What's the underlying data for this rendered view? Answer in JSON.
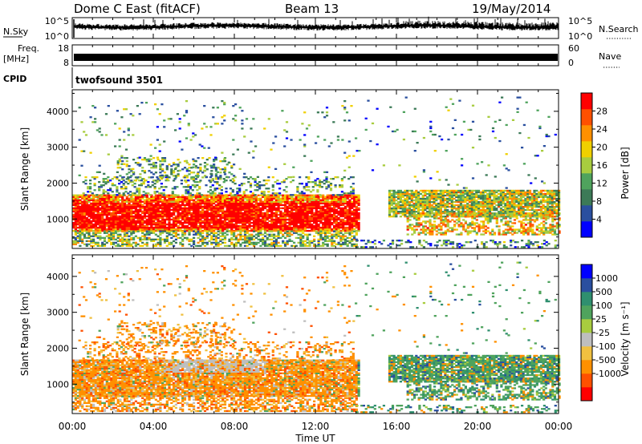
{
  "header": {
    "station": "Dome C East (fitACF)",
    "beam": "Beam 13",
    "date": "19/May/2014"
  },
  "nsky": {
    "label": "N.Sky",
    "ytick_top": "10^5",
    "ytick_bottom": "10^0",
    "right_label": "N.Search",
    "right_tick_top": "10^5",
    "right_tick_bottom": "10^0"
  },
  "freq": {
    "label_line1": "Freq.",
    "label_line2": "[MHz]",
    "ytick_top": "18",
    "ytick_bottom": "8",
    "right_label": "Nave",
    "right_tick_top": "60",
    "right_tick_bottom": "0"
  },
  "cpid": {
    "label": "CPID",
    "program": "twofsound 3501"
  },
  "colors": {
    "power": [
      "#0000ff",
      "#2a4f9f",
      "#3c7a57",
      "#4fa35d",
      "#a8cc3f",
      "#f0d000",
      "#ff9000",
      "#ff5000",
      "#ff0000"
    ],
    "velocity": [
      "#ff0000",
      "#ff5000",
      "#ff9000",
      "#f0c040",
      "#bebebe",
      "#a8cc3f",
      "#4fa35d",
      "#2f8f6f",
      "#2a4f9f",
      "#0000ff"
    ]
  },
  "chart_data": [
    {
      "type": "heatmap",
      "name": "power",
      "ylabel": "Slant Range [km]",
      "xlabel": "Time UT",
      "x_ticks": [
        "00:00",
        "04:00",
        "08:00",
        "12:00",
        "16:00",
        "20:00",
        "00:00"
      ],
      "y_ticks": [
        1000,
        2000,
        3000,
        4000
      ],
      "y_range": [
        180,
        4600
      ],
      "x_range_hours": [
        0,
        24
      ],
      "colorbar_label": "Power [dB]",
      "colorbar_ticks": [
        "4",
        "8",
        "12",
        "16",
        "20",
        "24",
        "28"
      ],
      "colorbar_range": [
        0,
        32
      ]
    },
    {
      "type": "heatmap",
      "name": "velocity",
      "ylabel": "Slant Range [km]",
      "xlabel": "Time UT",
      "x_ticks": [
        "00:00",
        "04:00",
        "08:00",
        "12:00",
        "16:00",
        "20:00",
        "00:00"
      ],
      "y_ticks": [
        1000,
        2000,
        3000,
        4000
      ],
      "y_range": [
        180,
        4600
      ],
      "x_range_hours": [
        0,
        24
      ],
      "colorbar_label": "Velocity [m s⁻¹]",
      "colorbar_ticks": [
        "1000",
        "500",
        "100",
        "25",
        "-25",
        "-100",
        "-500",
        "-1000"
      ]
    }
  ]
}
